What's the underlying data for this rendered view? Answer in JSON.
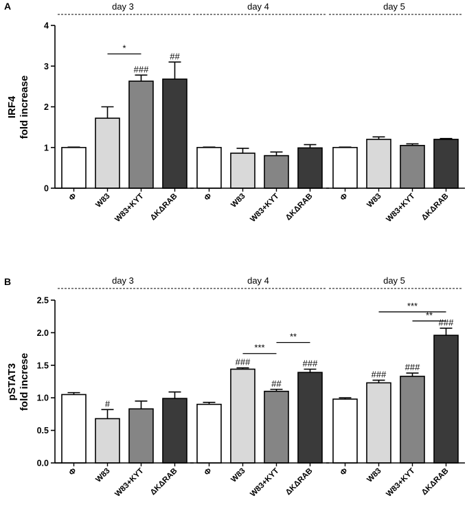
{
  "chart_data": [
    {
      "panel_label": "A",
      "type": "bar",
      "ylabel_line1": "IRF4",
      "ylabel_line2": "fold increase",
      "ylim": [
        0,
        4
      ],
      "yticks": [
        "0",
        "1",
        "2",
        "3",
        "4"
      ],
      "categories": [
        "Φ",
        "W83",
        "W83+KYT",
        "ΔKΔRAB"
      ],
      "groups": [
        {
          "label": "day 3",
          "values": [
            1.0,
            1.72,
            2.63,
            2.68
          ],
          "errors": [
            0.01,
            0.28,
            0.15,
            0.42
          ],
          "marks": [
            "",
            "",
            "###",
            "##"
          ]
        },
        {
          "label": "day 4",
          "values": [
            1.0,
            0.86,
            0.8,
            0.99
          ],
          "errors": [
            0.01,
            0.12,
            0.09,
            0.08
          ],
          "marks": [
            "",
            "",
            "",
            ""
          ]
        },
        {
          "label": "day 5",
          "values": [
            1.0,
            1.2,
            1.05,
            1.2
          ],
          "errors": [
            0.01,
            0.06,
            0.04,
            0.02
          ],
          "marks": [
            "",
            "",
            "",
            ""
          ]
        }
      ],
      "comparisons": [
        {
          "group": 0,
          "from": 1,
          "to": 2,
          "label": "*",
          "level": 3.3
        }
      ]
    },
    {
      "panel_label": "B",
      "type": "bar",
      "ylabel_line1": "pSTAT3",
      "ylabel_line2": "fold increse",
      "ylim": [
        0,
        2.5
      ],
      "yticks": [
        "0.0",
        "0.5",
        "1.0",
        "1.5",
        "2.0",
        "2.5"
      ],
      "categories": [
        "Φ",
        "W83",
        "W83+KYT",
        "ΔKΔRAB"
      ],
      "groups": [
        {
          "label": "day 3",
          "values": [
            1.05,
            0.68,
            0.83,
            0.99
          ],
          "errors": [
            0.03,
            0.14,
            0.12,
            0.1
          ],
          "marks": [
            "",
            "#",
            "",
            ""
          ]
        },
        {
          "label": "day 4",
          "values": [
            0.9,
            1.44,
            1.1,
            1.39
          ],
          "errors": [
            0.03,
            0.02,
            0.03,
            0.05
          ],
          "marks": [
            "",
            "###",
            "##",
            "###"
          ]
        },
        {
          "label": "day 5",
          "values": [
            0.98,
            1.23,
            1.33,
            1.96
          ],
          "errors": [
            0.02,
            0.04,
            0.05,
            0.11
          ],
          "marks": [
            "",
            "###",
            "###",
            "###"
          ]
        }
      ],
      "comparisons": [
        {
          "group": 1,
          "from": 1,
          "to": 2,
          "label": "***",
          "level": 1.68
        },
        {
          "group": 1,
          "from": 2,
          "to": 3,
          "label": "**",
          "level": 1.85
        },
        {
          "group": 2,
          "from": 1,
          "to": 3,
          "label": "***",
          "level": 2.32
        },
        {
          "group": 2,
          "from": 2,
          "to": 3,
          "label": "**",
          "level": 2.18
        }
      ]
    }
  ],
  "colors": {
    "bars": [
      "#ffffff",
      "#d9d9d9",
      "#858585",
      "#3a3a3a"
    ],
    "stroke": "#000000"
  }
}
